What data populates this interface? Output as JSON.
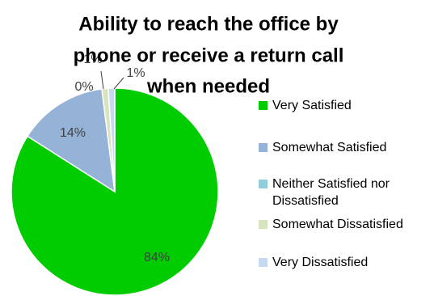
{
  "chart_data": {
    "type": "pie",
    "title_lines": [
      "Ability to reach the office by",
      "phone or receive a return call",
      "when needed"
    ],
    "categories": [
      "Very Satisfied",
      "Somewhat Satisfied",
      "Neither Satisfied nor Dissatisfied",
      "Somewhat Dissatisfied",
      "Very Dissatisfied"
    ],
    "legend_lines": [
      [
        "Very Satisfied"
      ],
      [
        "Somewhat Satisfied"
      ],
      [
        "Neither Satisfied nor",
        "Dissatisfied"
      ],
      [
        "Somewhat Dissatisfied"
      ],
      [
        "Very Dissatisfied"
      ]
    ],
    "values": [
      84,
      14,
      0,
      1,
      1
    ],
    "labels": [
      "84%",
      "14%",
      "0%",
      "1%",
      "1%"
    ],
    "colors": [
      "#00CC00",
      "#95B3D7",
      "#92CDDC",
      "#D7E4BD",
      "#C6D9F1"
    ],
    "legend_position": "right"
  }
}
